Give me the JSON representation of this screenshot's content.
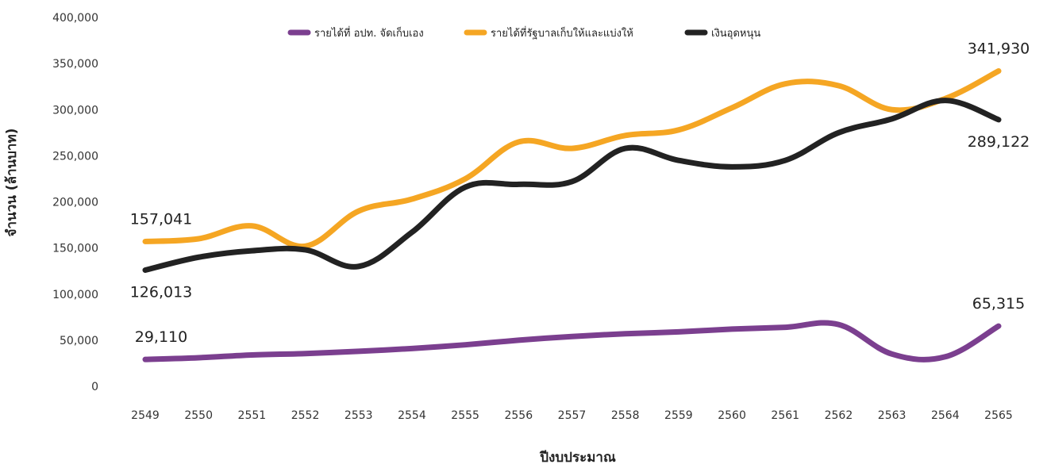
{
  "chart_data": {
    "type": "line",
    "title": "",
    "xlabel": "ปีงบประมาณ",
    "ylabel": "จำนวน (ล้านบาท)",
    "ylim": [
      0,
      400000
    ],
    "yticks": [
      "0",
      "50,000",
      "100,000",
      "150,000",
      "200,000",
      "250,000",
      "300,000",
      "350,000",
      "400,000"
    ],
    "categories": [
      "2549",
      "2550",
      "2551",
      "2552",
      "2553",
      "2554",
      "2555",
      "2556",
      "2557",
      "2558",
      "2559",
      "2560",
      "2561",
      "2562",
      "2563",
      "2564",
      "2565"
    ],
    "grid": false,
    "legend_position": "top",
    "series": [
      {
        "name": "รายได้ที่ อปท. จัดเก็บเอง",
        "color": "#7b3f8f",
        "values": [
          29110,
          31000,
          34000,
          35500,
          38000,
          41000,
          45000,
          50000,
          54000,
          57000,
          59000,
          62000,
          64000,
          67000,
          35000,
          32000,
          65315
        ]
      },
      {
        "name": "รายได้ที่รัฐบาลเก็บให้และแบ่งให้",
        "color": "#f5a623",
        "values": [
          157041,
          160000,
          174000,
          152000,
          190000,
          203000,
          225000,
          265000,
          258000,
          272000,
          278000,
          302000,
          328000,
          326000,
          300000,
          312000,
          341930
        ]
      },
      {
        "name": "เงินอุดหนุน",
        "color": "#222222",
        "values": [
          126013,
          140000,
          147000,
          148000,
          130000,
          167000,
          216000,
          219000,
          222000,
          258000,
          245000,
          238000,
          245000,
          275000,
          290000,
          310000,
          289122
        ]
      }
    ],
    "annotations": [
      {
        "series": 0,
        "index": 0,
        "text": "29,110",
        "pos": "above"
      },
      {
        "series": 0,
        "index": 16,
        "text": "65,315",
        "pos": "above"
      },
      {
        "series": 1,
        "index": 0,
        "text": "157,041",
        "pos": "above"
      },
      {
        "series": 1,
        "index": 16,
        "text": "341,930",
        "pos": "above"
      },
      {
        "series": 2,
        "index": 0,
        "text": "126,013",
        "pos": "below"
      },
      {
        "series": 2,
        "index": 16,
        "text": "289,122",
        "pos": "below"
      }
    ]
  }
}
